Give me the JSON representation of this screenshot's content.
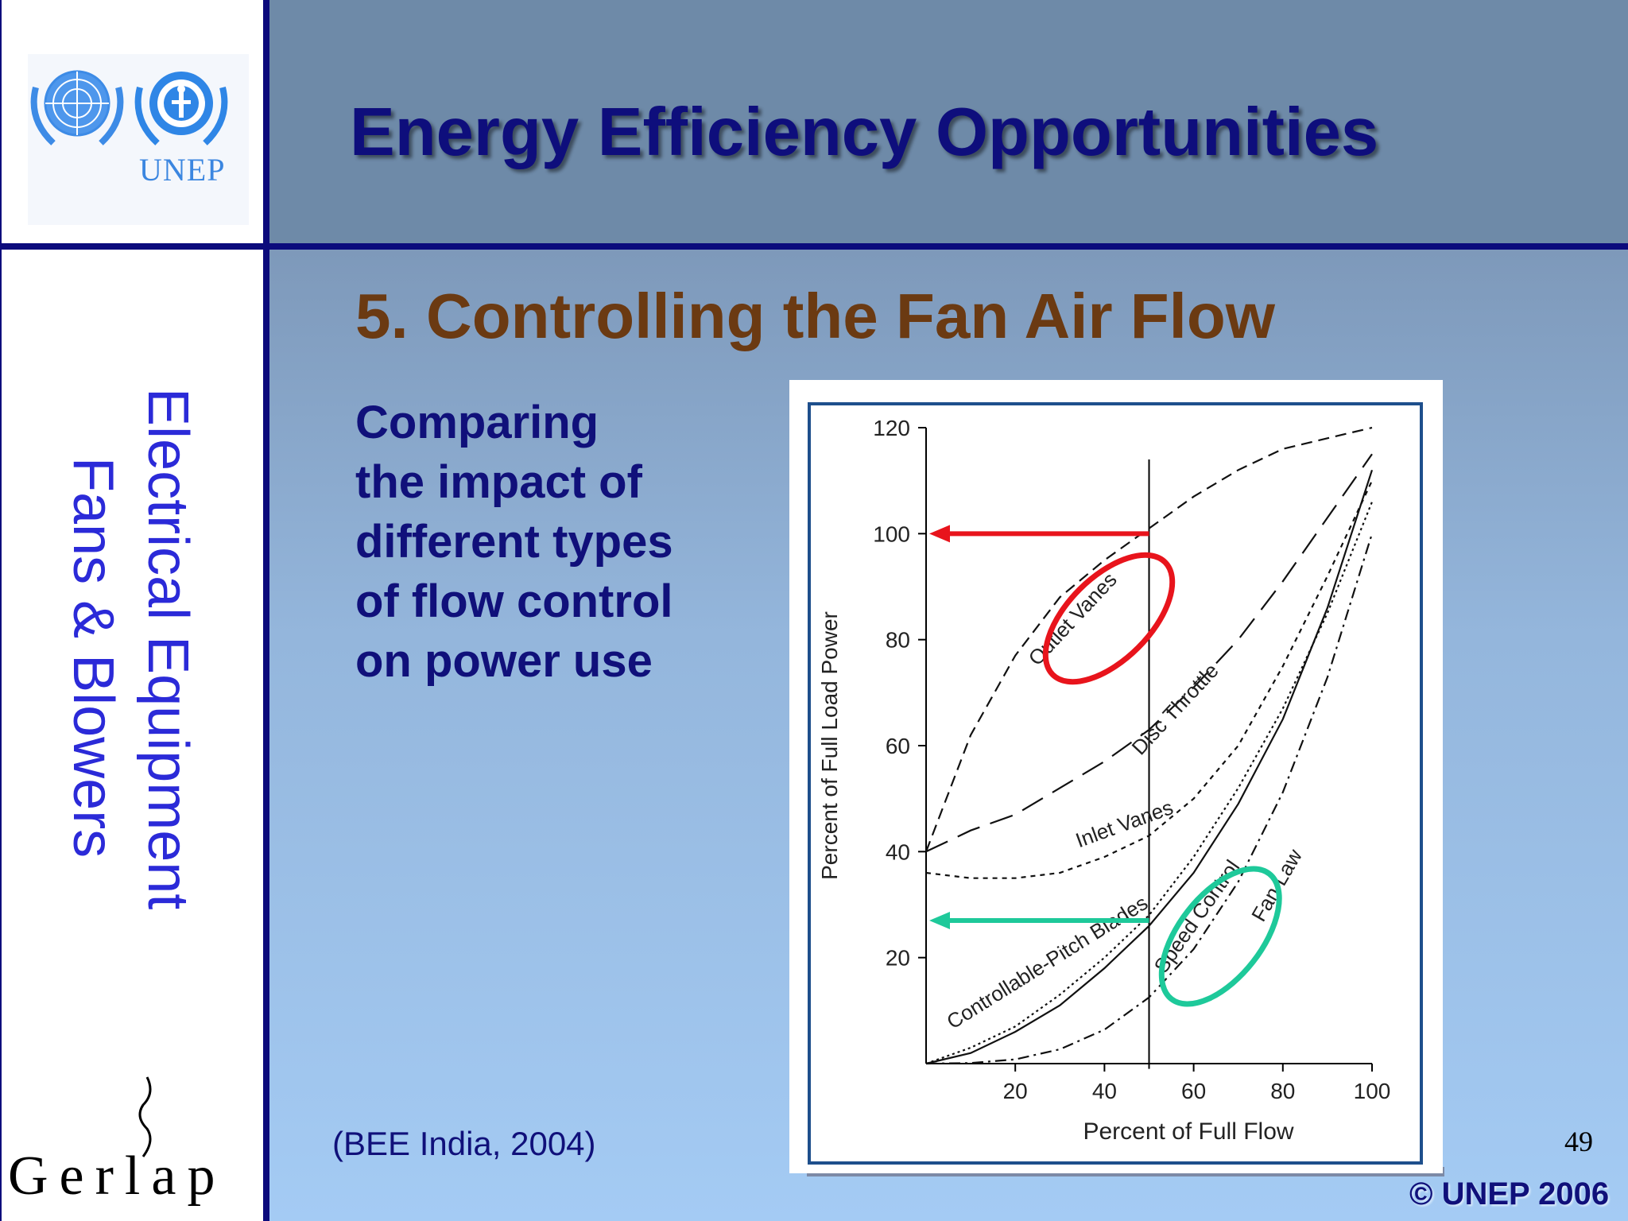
{
  "slide": {
    "title": "Energy Efficiency Opportunities",
    "subtitle": "5. Controlling the Fan Air Flow",
    "body_lines": [
      "Comparing",
      "the impact of",
      "different types",
      "of flow control",
      "on power use"
    ],
    "citation": "(BEE India, 2004)",
    "page_number": "49",
    "copyright": "© UNEP 2006"
  },
  "sidebar": {
    "logo_text": "UNEP",
    "vertical_line_1": "Electrical Equipment",
    "vertical_line_2": "Fans & Blowers",
    "bottom_logo": "Gerlap"
  },
  "colors": {
    "accent_navy": "#0c0b7c",
    "title_color": "#0e0e7c",
    "subtitle_color": "#6b3a12",
    "red_highlight": "#e8141c",
    "green_highlight": "#1ec99a"
  },
  "chart_data": {
    "type": "line",
    "xlabel": "Percent of Full Flow",
    "ylabel": "Percent of Full Load Power",
    "xlim": [
      0,
      100
    ],
    "ylim": [
      0,
      120
    ],
    "x_ticks": [
      "20",
      "40",
      "60",
      "80",
      "100"
    ],
    "y_ticks": [
      "20",
      "40",
      "60",
      "80",
      "100",
      "120"
    ],
    "vertical_reference_x": 50,
    "series": [
      {
        "name": "Outlet Vanes",
        "style": "dashed",
        "points": [
          [
            0,
            40
          ],
          [
            10,
            62
          ],
          [
            20,
            77
          ],
          [
            30,
            88
          ],
          [
            40,
            95
          ],
          [
            50,
            101
          ],
          [
            60,
            107
          ],
          [
            70,
            112
          ],
          [
            80,
            116
          ],
          [
            90,
            118
          ],
          [
            100,
            120
          ]
        ]
      },
      {
        "name": "Disc Throttle",
        "style": "long-dash",
        "points": [
          [
            0,
            40
          ],
          [
            10,
            44
          ],
          [
            20,
            47
          ],
          [
            30,
            52
          ],
          [
            40,
            57
          ],
          [
            50,
            63
          ],
          [
            60,
            71
          ],
          [
            70,
            80
          ],
          [
            80,
            91
          ],
          [
            90,
            103
          ],
          [
            100,
            115
          ]
        ]
      },
      {
        "name": "Inlet Vanes",
        "style": "short-dash",
        "points": [
          [
            0,
            36
          ],
          [
            10,
            35
          ],
          [
            20,
            35
          ],
          [
            30,
            36
          ],
          [
            40,
            39
          ],
          [
            50,
            43
          ],
          [
            60,
            50
          ],
          [
            70,
            60
          ],
          [
            80,
            75
          ],
          [
            90,
            92
          ],
          [
            100,
            110
          ]
        ]
      },
      {
        "name": "Controllable-Pitch Blades",
        "style": "dotted",
        "points": [
          [
            0,
            0
          ],
          [
            10,
            3
          ],
          [
            20,
            7
          ],
          [
            30,
            13
          ],
          [
            40,
            20
          ],
          [
            50,
            28
          ],
          [
            60,
            39
          ],
          [
            70,
            52
          ],
          [
            80,
            67
          ],
          [
            90,
            85
          ],
          [
            100,
            106
          ]
        ]
      },
      {
        "name": "Speed Control",
        "style": "solid",
        "points": [
          [
            0,
            0
          ],
          [
            10,
            2
          ],
          [
            20,
            6
          ],
          [
            30,
            11
          ],
          [
            40,
            18
          ],
          [
            50,
            26
          ],
          [
            60,
            36
          ],
          [
            70,
            49
          ],
          [
            80,
            65
          ],
          [
            90,
            86
          ],
          [
            100,
            112
          ]
        ]
      },
      {
        "name": "Fan Law",
        "style": "dash-dot",
        "points": [
          [
            0,
            0
          ],
          [
            10,
            0.1
          ],
          [
            20,
            0.8
          ],
          [
            30,
            2.7
          ],
          [
            40,
            6.4
          ],
          [
            50,
            12.5
          ],
          [
            60,
            21.6
          ],
          [
            70,
            34.3
          ],
          [
            80,
            51.2
          ],
          [
            90,
            72.9
          ],
          [
            100,
            100
          ]
        ]
      }
    ],
    "annotations": [
      {
        "type": "arrow",
        "color": "red",
        "from": [
          50,
          100
        ],
        "to": [
          0,
          100
        ]
      },
      {
        "type": "arrow",
        "color": "green",
        "from": [
          50,
          27
        ],
        "to": [
          0,
          27
        ]
      },
      {
        "type": "ellipse",
        "color": "red",
        "target": "Outlet Vanes"
      },
      {
        "type": "ellipse",
        "color": "green",
        "target": "Speed Control"
      }
    ]
  }
}
